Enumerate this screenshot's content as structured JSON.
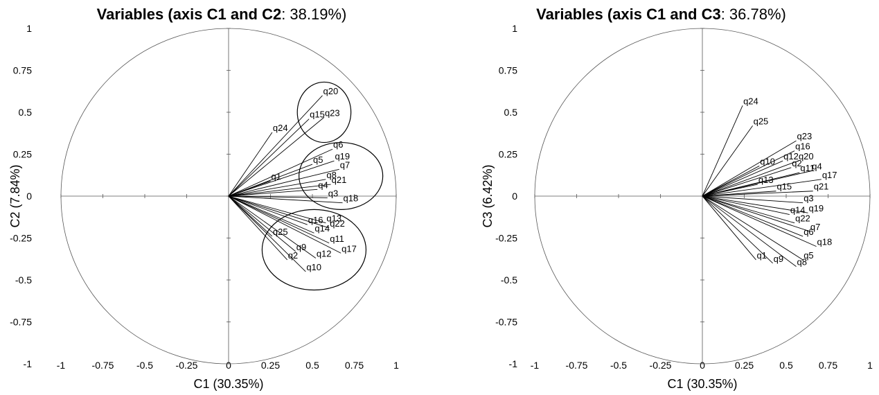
{
  "chart_data": [
    {
      "type": "scatter",
      "title_bold": "Variables (axis C1 and C2",
      "title_rest": ": 38.19%)",
      "xlabel": "C1 (30.35%)",
      "ylabel": "C2 (7.84%)",
      "xlim": [
        -1,
        1
      ],
      "ylim": [
        -1,
        1
      ],
      "xticks": [
        "-1",
        "-0.75",
        "-0.5",
        "-0.25",
        "0",
        "0.25",
        "0.5",
        "0.75",
        "1"
      ],
      "yticks": [
        "1",
        "0.75",
        "0.5",
        "0.25",
        "0",
        "-0.25",
        "-0.5",
        "-0.75",
        "-1"
      ],
      "grid": false,
      "unit_circle": true,
      "variables": [
        {
          "name": "q20",
          "x": 0.56,
          "y": 0.6
        },
        {
          "name": "q15",
          "x": 0.48,
          "y": 0.46
        },
        {
          "name": "q23",
          "x": 0.57,
          "y": 0.47
        },
        {
          "name": "q24",
          "x": 0.26,
          "y": 0.38
        },
        {
          "name": "q6",
          "x": 0.62,
          "y": 0.28
        },
        {
          "name": "q5",
          "x": 0.5,
          "y": 0.19
        },
        {
          "name": "q19",
          "x": 0.63,
          "y": 0.21
        },
        {
          "name": "q7",
          "x": 0.66,
          "y": 0.16
        },
        {
          "name": "q1",
          "x": 0.25,
          "y": 0.09
        },
        {
          "name": "q8",
          "x": 0.58,
          "y": 0.1
        },
        {
          "name": "q21",
          "x": 0.61,
          "y": 0.07
        },
        {
          "name": "q4",
          "x": 0.53,
          "y": 0.04
        },
        {
          "name": "q3",
          "x": 0.59,
          "y": -0.01
        },
        {
          "name": "q18",
          "x": 0.68,
          "y": -0.04
        },
        {
          "name": "q13",
          "x": 0.58,
          "y": -0.16
        },
        {
          "name": "q16",
          "x": 0.47,
          "y": -0.17
        },
        {
          "name": "q22",
          "x": 0.6,
          "y": -0.19
        },
        {
          "name": "q14",
          "x": 0.51,
          "y": -0.22
        },
        {
          "name": "q25",
          "x": 0.26,
          "y": -0.24
        },
        {
          "name": "q11",
          "x": 0.6,
          "y": -0.28
        },
        {
          "name": "q9",
          "x": 0.4,
          "y": -0.33
        },
        {
          "name": "q17",
          "x": 0.67,
          "y": -0.34
        },
        {
          "name": "q12",
          "x": 0.52,
          "y": -0.37
        },
        {
          "name": "q2",
          "x": 0.35,
          "y": -0.38
        },
        {
          "name": "q10",
          "x": 0.46,
          "y": -0.45
        }
      ],
      "ellipses": [
        {
          "cx": 0.57,
          "cy": 0.5,
          "rx": 0.16,
          "ry": 0.18
        },
        {
          "cx": 0.67,
          "cy": 0.12,
          "rx": 0.25,
          "ry": 0.2
        },
        {
          "cx": 0.51,
          "cy": -0.32,
          "rx": 0.31,
          "ry": 0.24
        }
      ]
    },
    {
      "type": "scatter",
      "title_bold": "Variables (axis C1 and C3",
      "title_rest": ": 36.78%)",
      "xlabel": "C1 (30.35%)",
      "ylabel": "C3 (6.42%)",
      "xlim": [
        -1,
        1
      ],
      "ylim": [
        -1,
        1
      ],
      "xticks": [
        "-1",
        "-0.75",
        "-0.5",
        "-0.25",
        "0",
        "0.25",
        "0.5",
        "0.75",
        "1"
      ],
      "yticks": [
        "1",
        "0.75",
        "0.5",
        "0.25",
        "0",
        "-0.25",
        "-0.5",
        "-0.75",
        "-1"
      ],
      "grid": false,
      "unit_circle": true,
      "variables": [
        {
          "name": "q24",
          "x": 0.24,
          "y": 0.54
        },
        {
          "name": "q25",
          "x": 0.3,
          "y": 0.42
        },
        {
          "name": "q23",
          "x": 0.56,
          "y": 0.33
        },
        {
          "name": "q16",
          "x": 0.55,
          "y": 0.27
        },
        {
          "name": "q10",
          "x": 0.34,
          "y": 0.18
        },
        {
          "name": "q12",
          "x": 0.48,
          "y": 0.21
        },
        {
          "name": "q20",
          "x": 0.57,
          "y": 0.21
        },
        {
          "name": "q2",
          "x": 0.53,
          "y": 0.17
        },
        {
          "name": "q11",
          "x": 0.58,
          "y": 0.14
        },
        {
          "name": "q4",
          "x": 0.65,
          "y": 0.15
        },
        {
          "name": "q17",
          "x": 0.71,
          "y": 0.1
        },
        {
          "name": "q13",
          "x": 0.33,
          "y": 0.07
        },
        {
          "name": "q15",
          "x": 0.44,
          "y": 0.03
        },
        {
          "name": "q21",
          "x": 0.66,
          "y": 0.03
        },
        {
          "name": "q3",
          "x": 0.6,
          "y": -0.04
        },
        {
          "name": "q14",
          "x": 0.52,
          "y": -0.11
        },
        {
          "name": "q19",
          "x": 0.63,
          "y": -0.1
        },
        {
          "name": "q22",
          "x": 0.55,
          "y": -0.16
        },
        {
          "name": "q7",
          "x": 0.64,
          "y": -0.21
        },
        {
          "name": "q6",
          "x": 0.6,
          "y": -0.24
        },
        {
          "name": "q18",
          "x": 0.68,
          "y": -0.3
        },
        {
          "name": "q1",
          "x": 0.32,
          "y": -0.38
        },
        {
          "name": "q5",
          "x": 0.6,
          "y": -0.38
        },
        {
          "name": "q9",
          "x": 0.42,
          "y": -0.4
        },
        {
          "name": "q8",
          "x": 0.56,
          "y": -0.42
        }
      ],
      "ellipses": []
    }
  ]
}
